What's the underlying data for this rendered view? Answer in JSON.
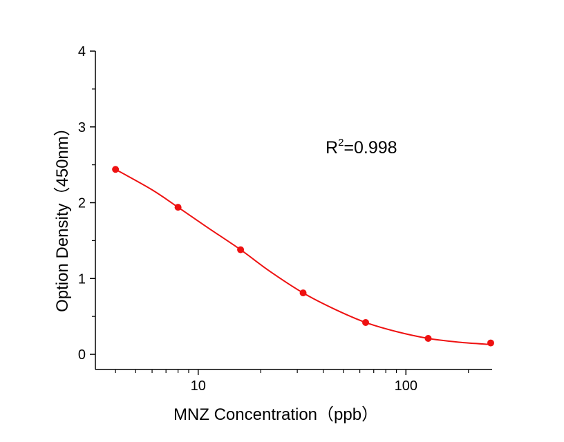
{
  "chart_data": {
    "type": "scatter",
    "xscale": "log",
    "xlim": [
      3.2,
      260
    ],
    "ylim": [
      -0.2,
      4
    ],
    "x_ticks": [
      {
        "value": 10,
        "label": "10"
      },
      {
        "value": 100,
        "label": "100"
      }
    ],
    "y_ticks": [
      {
        "value": 0,
        "label": "0"
      },
      {
        "value": 1,
        "label": "1"
      },
      {
        "value": 2,
        "label": "2"
      },
      {
        "value": 3,
        "label": "3"
      },
      {
        "value": 4,
        "label": "4"
      }
    ],
    "xlabel": "MNZ Concentration（ppb）",
    "ylabel": "Option Density（450nm）",
    "annotation": {
      "prefix": "R",
      "sup": "2",
      "suffix": "=0.998"
    },
    "grid": false,
    "legend": "none",
    "series": [
      {
        "color": "#ee1111",
        "points": [
          {
            "x": 4,
            "y": 2.44
          },
          {
            "x": 8,
            "y": 1.94
          },
          {
            "x": 16,
            "y": 1.38
          },
          {
            "x": 32,
            "y": 0.81
          },
          {
            "x": 64,
            "y": 0.42
          },
          {
            "x": 128,
            "y": 0.21
          },
          {
            "x": 256,
            "y": 0.15
          }
        ],
        "fit_curve": [
          {
            "x": 4,
            "y": 2.44
          },
          {
            "x": 6,
            "y": 2.17
          },
          {
            "x": 8,
            "y": 1.94
          },
          {
            "x": 11,
            "y": 1.68
          },
          {
            "x": 16,
            "y": 1.38
          },
          {
            "x": 22,
            "y": 1.1
          },
          {
            "x": 32,
            "y": 0.81
          },
          {
            "x": 45,
            "y": 0.6
          },
          {
            "x": 64,
            "y": 0.42
          },
          {
            "x": 90,
            "y": 0.3
          },
          {
            "x": 128,
            "y": 0.21
          },
          {
            "x": 180,
            "y": 0.16
          },
          {
            "x": 256,
            "y": 0.13
          }
        ]
      }
    ]
  }
}
